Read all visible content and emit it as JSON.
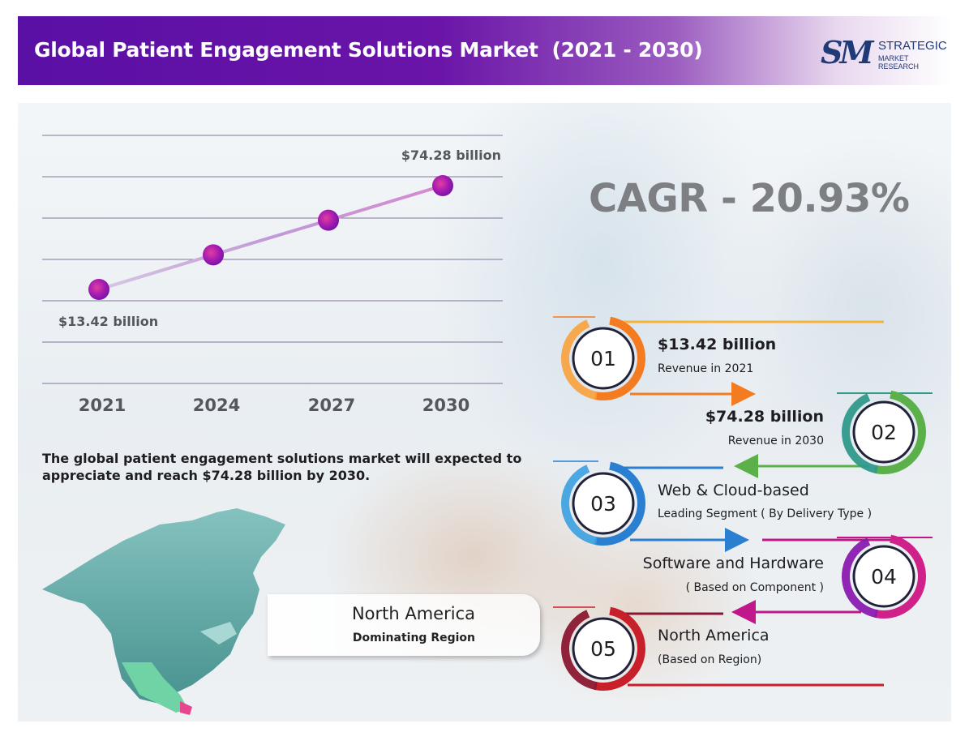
{
  "header": {
    "title": "Global Patient Engagement Solutions Market  (2021 - 2030)",
    "logo": {
      "mark": "SM",
      "line1": "STRATEGIC",
      "line2": "MARKET RESEARCH"
    }
  },
  "chart_data": {
    "type": "line",
    "x": [
      "2021",
      "2024",
      "2027",
      "2030"
    ],
    "series": [
      {
        "values": [
          13.42,
          null,
          null,
          74.28
        ]
      }
    ],
    "data_labels": [
      "$13.42 billion",
      "$74.28 billion"
    ],
    "xlabel": "",
    "ylabel": "",
    "grid": true
  },
  "cagr": "CAGR - 20.93%",
  "summary": "The global patient engagement solutions market will expected to appreciate and reach $74.28 billion by 2030.",
  "region_box": {
    "name": "North America",
    "sub": "Dominating Region"
  },
  "items": [
    {
      "num": "01",
      "title": "$13.42 billion",
      "sub": "Revenue in 2021"
    },
    {
      "num": "02",
      "title": "$74.28 billion",
      "sub": "Revenue in 2030"
    },
    {
      "num": "03",
      "title": "Web & Cloud-based",
      "sub": "Leading Segment ( By Delivery Type )"
    },
    {
      "num": "04",
      "title": "Software and Hardware",
      "sub": "( Based on Component )"
    },
    {
      "num": "05",
      "title": "North America",
      "sub": "(Based on Region)"
    }
  ],
  "colors": {
    "header_purple": "#5a0fa5",
    "item01": "#f47b20",
    "item02": "#5bb04a",
    "item03": "#2a7fd0",
    "item04": "#d0208a",
    "item05": "#c8202a",
    "map": "#5ea8a6"
  }
}
